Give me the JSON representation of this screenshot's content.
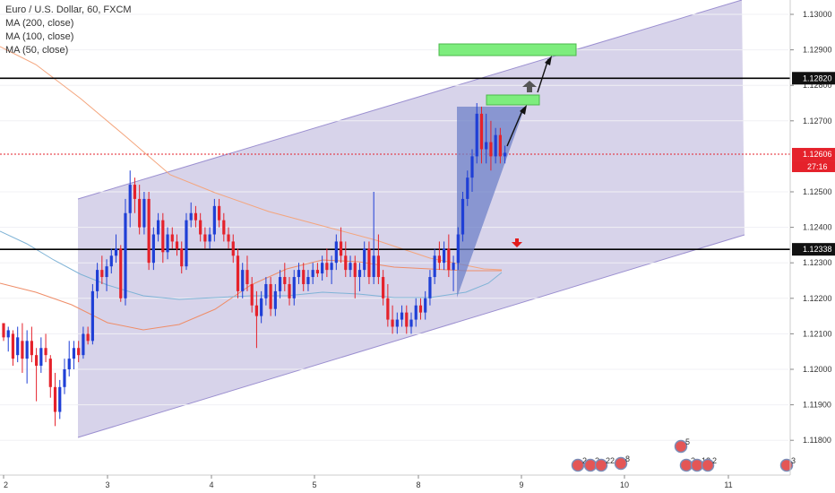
{
  "chart_title": "Euro / U.S. Dollar, 60, FXCM",
  "legend": [
    "MA (200, close)",
    "MA (100, close)",
    "MA (50, close)"
  ],
  "price_badges": {
    "resistance": "1.12820",
    "current": "1.12606",
    "countdown": "27:16",
    "support": "1.12338"
  },
  "colors": {
    "bull": "#1f3fd6",
    "bear": "#e5222b",
    "channel_fill": "#d0cbe6",
    "channel_line": "#9b8fd0",
    "wedge": "#6f82c8",
    "target_box": "#7ded7d",
    "ma200": "#f4a57d",
    "ma100": "#ef8d68",
    "ma50": "#7fb3d6",
    "arrow_up": "#555555",
    "arrow_down": "#e31b1b"
  },
  "events": [
    "2",
    "2",
    "22",
    "8",
    "5",
    "2",
    "12",
    "2",
    "3"
  ],
  "chart_data": {
    "type": "candlestick",
    "title": "Euro / U.S. Dollar, 60, FXCM",
    "xlabel": "",
    "ylabel": "",
    "x_ticks": [
      "2",
      "3",
      "4",
      "5",
      "8",
      "9",
      "10",
      "11"
    ],
    "y_ticks": [
      "1.11800",
      "1.11900",
      "1.12000",
      "1.12100",
      "1.12200",
      "1.12300",
      "1.12400",
      "1.12500",
      "1.12700",
      "1.12800",
      "1.12900",
      "1.13000"
    ],
    "ylim": [
      1.1175,
      1.1312
    ],
    "horizontal_lines": [
      1.1282,
      1.12338
    ],
    "current_price": 1.12606,
    "candles": [
      [
        1.1213,
        1.1213,
        1.1208,
        1.1209
      ],
      [
        1.1209,
        1.1212,
        1.1205,
        1.1211
      ],
      [
        1.121,
        1.1211,
        1.1201,
        1.1203
      ],
      [
        1.1204,
        1.1212,
        1.1202,
        1.1209
      ],
      [
        1.1208,
        1.1213,
        1.1199,
        1.1203
      ],
      [
        1.1203,
        1.1211,
        1.1196,
        1.1208
      ],
      [
        1.1208,
        1.1212,
        1.1202,
        1.1204
      ],
      [
        1.1204,
        1.1206,
        1.1191,
        1.1201
      ],
      [
        1.1201,
        1.1209,
        1.1199,
        1.1206
      ],
      [
        1.1206,
        1.121,
        1.1202,
        1.1204
      ],
      [
        1.1203,
        1.1204,
        1.1192,
        1.1195
      ],
      [
        1.1195,
        1.1199,
        1.1184,
        1.1188
      ],
      [
        1.1188,
        1.1197,
        1.1186,
        1.1195
      ],
      [
        1.1195,
        1.1203,
        1.1193,
        1.12
      ],
      [
        1.12,
        1.1208,
        1.1198,
        1.1203
      ],
      [
        1.1203,
        1.1208,
        1.12,
        1.1206
      ],
      [
        1.1206,
        1.1208,
        1.1202,
        1.1204
      ],
      [
        1.1204,
        1.1212,
        1.1203,
        1.121
      ],
      [
        1.121,
        1.1212,
        1.1207,
        1.1208
      ],
      [
        1.1208,
        1.1224,
        1.1207,
        1.1222
      ],
      [
        1.1222,
        1.123,
        1.122,
        1.1228
      ],
      [
        1.1228,
        1.1232,
        1.1224,
        1.1226
      ],
      [
        1.1226,
        1.1231,
        1.1222,
        1.1229
      ],
      [
        1.1229,
        1.1234,
        1.1227,
        1.1232
      ],
      [
        1.1232,
        1.1238,
        1.123,
        1.1234
      ],
      [
        1.1234,
        1.1235,
        1.1219,
        1.122
      ],
      [
        1.122,
        1.1248,
        1.1218,
        1.1244
      ],
      [
        1.1244,
        1.1256,
        1.124,
        1.1252
      ],
      [
        1.1252,
        1.1254,
        1.1244,
        1.1248
      ],
      [
        1.1248,
        1.1252,
        1.1238,
        1.124
      ],
      [
        1.124,
        1.125,
        1.1238,
        1.1248
      ],
      [
        1.1248,
        1.125,
        1.1228,
        1.123
      ],
      [
        1.123,
        1.124,
        1.1228,
        1.1238
      ],
      [
        1.1238,
        1.1244,
        1.1236,
        1.1242
      ],
      [
        1.1242,
        1.1244,
        1.123,
        1.1233
      ],
      [
        1.1233,
        1.124,
        1.1231,
        1.1238
      ],
      [
        1.1238,
        1.124,
        1.1234,
        1.1236
      ],
      [
        1.1236,
        1.1238,
        1.1232,
        1.1234
      ],
      [
        1.1234,
        1.1236,
        1.1227,
        1.1229
      ],
      [
        1.1229,
        1.1244,
        1.1228,
        1.1242
      ],
      [
        1.1242,
        1.1247,
        1.124,
        1.1244
      ],
      [
        1.1244,
        1.1246,
        1.124,
        1.1242
      ],
      [
        1.1242,
        1.1244,
        1.1236,
        1.1238
      ],
      [
        1.1238,
        1.124,
        1.1234,
        1.1236
      ],
      [
        1.1236,
        1.124,
        1.1234,
        1.1238
      ],
      [
        1.1238,
        1.1248,
        1.1236,
        1.1246
      ],
      [
        1.1246,
        1.1248,
        1.124,
        1.1242
      ],
      [
        1.1242,
        1.1244,
        1.1236,
        1.1238
      ],
      [
        1.1238,
        1.124,
        1.1234,
        1.1236
      ],
      [
        1.1236,
        1.1238,
        1.123,
        1.1232
      ],
      [
        1.1232,
        1.1234,
        1.122,
        1.1222
      ],
      [
        1.1222,
        1.123,
        1.122,
        1.1228
      ],
      [
        1.1228,
        1.1232,
        1.1222,
        1.1224
      ],
      [
        1.1224,
        1.1226,
        1.1216,
        1.1218
      ],
      [
        1.1218,
        1.1222,
        1.1206,
        1.1215
      ],
      [
        1.1215,
        1.1222,
        1.1213,
        1.122
      ],
      [
        1.122,
        1.1226,
        1.1218,
        1.1224
      ],
      [
        1.1224,
        1.1226,
        1.1215,
        1.1217
      ],
      [
        1.1217,
        1.1224,
        1.1215,
        1.1222
      ],
      [
        1.1222,
        1.1228,
        1.122,
        1.1226
      ],
      [
        1.1226,
        1.123,
        1.1222,
        1.1224
      ],
      [
        1.1224,
        1.1226,
        1.1218,
        1.122
      ],
      [
        1.122,
        1.1228,
        1.1218,
        1.1226
      ],
      [
        1.1226,
        1.123,
        1.1224,
        1.1228
      ],
      [
        1.1228,
        1.123,
        1.1222,
        1.1224
      ],
      [
        1.1224,
        1.1228,
        1.1222,
        1.1226
      ],
      [
        1.1226,
        1.123,
        1.1224,
        1.1228
      ],
      [
        1.1228,
        1.123,
        1.1226,
        1.1227
      ],
      [
        1.1227,
        1.1232,
        1.1225,
        1.123
      ],
      [
        1.123,
        1.1234,
        1.1226,
        1.1228
      ],
      [
        1.1228,
        1.1232,
        1.1224,
        1.123
      ],
      [
        1.123,
        1.1238,
        1.1228,
        1.1236
      ],
      [
        1.1236,
        1.124,
        1.123,
        1.1232
      ],
      [
        1.1232,
        1.1236,
        1.1226,
        1.1228
      ],
      [
        1.1228,
        1.1232,
        1.1226,
        1.123
      ],
      [
        1.123,
        1.1232,
        1.122,
        1.1226
      ],
      [
        1.1226,
        1.123,
        1.1222,
        1.1228
      ],
      [
        1.1228,
        1.1236,
        1.1226,
        1.1234
      ],
      [
        1.1234,
        1.1236,
        1.1224,
        1.1226
      ],
      [
        1.1226,
        1.125,
        1.1224,
        1.1232
      ],
      [
        1.1232,
        1.1238,
        1.1224,
        1.1226
      ],
      [
        1.1226,
        1.1228,
        1.1218,
        1.122
      ],
      [
        1.122,
        1.1224,
        1.1212,
        1.1214
      ],
      [
        1.1214,
        1.1218,
        1.121,
        1.1212
      ],
      [
        1.1212,
        1.1216,
        1.121,
        1.1214
      ],
      [
        1.1214,
        1.1218,
        1.1212,
        1.1216
      ],
      [
        1.1216,
        1.1218,
        1.121,
        1.1212
      ],
      [
        1.1212,
        1.1216,
        1.121,
        1.1214
      ],
      [
        1.1214,
        1.122,
        1.1212,
        1.1218
      ],
      [
        1.1218,
        1.122,
        1.1214,
        1.1216
      ],
      [
        1.1216,
        1.1222,
        1.1214,
        1.122
      ],
      [
        1.122,
        1.1228,
        1.1218,
        1.1226
      ],
      [
        1.1226,
        1.1234,
        1.1224,
        1.1232
      ],
      [
        1.1232,
        1.1236,
        1.1228,
        1.123
      ],
      [
        1.123,
        1.1236,
        1.1228,
        1.1234
      ],
      [
        1.1234,
        1.1238,
        1.1226,
        1.1228
      ],
      [
        1.1228,
        1.1232,
        1.1222,
        1.123
      ],
      [
        1.123,
        1.124,
        1.1228,
        1.1238
      ],
      [
        1.1238,
        1.125,
        1.1236,
        1.1248
      ],
      [
        1.1248,
        1.1256,
        1.1246,
        1.1254
      ],
      [
        1.1254,
        1.1262,
        1.125,
        1.126
      ],
      [
        1.126,
        1.1275,
        1.1258,
        1.1272
      ],
      [
        1.1272,
        1.1274,
        1.1258,
        1.1262
      ],
      [
        1.1262,
        1.1272,
        1.1258,
        1.1264
      ],
      [
        1.1264,
        1.127,
        1.1256,
        1.126
      ],
      [
        1.126,
        1.1268,
        1.1258,
        1.1266
      ],
      [
        1.1266,
        1.1268,
        1.1258,
        1.126
      ],
      [
        1.126,
        1.1263,
        1.1258,
        1.1261
      ]
    ]
  }
}
